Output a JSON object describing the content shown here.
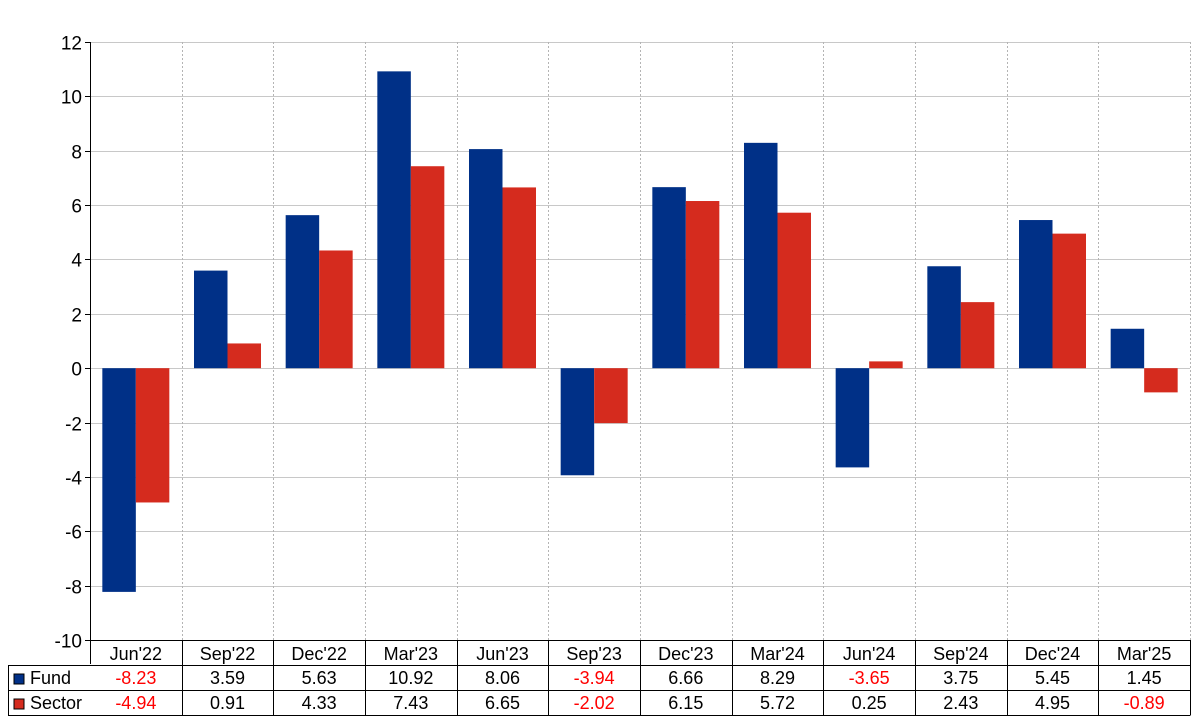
{
  "chart_data": {
    "type": "bar",
    "categories": [
      "Jun'22",
      "Sep'22",
      "Dec'22",
      "Mar'23",
      "Jun'23",
      "Sep'23",
      "Dec'23",
      "Mar'24",
      "Jun'24",
      "Sep'24",
      "Dec'24",
      "Mar'25"
    ],
    "series": [
      {
        "name": "Fund",
        "color": "#003087",
        "values": [
          -8.23,
          3.59,
          5.63,
          10.92,
          8.06,
          -3.94,
          6.66,
          8.29,
          -3.65,
          3.75,
          5.45,
          1.45
        ]
      },
      {
        "name": "Sector",
        "color": "#d52b1e",
        "values": [
          -4.94,
          0.91,
          4.33,
          7.43,
          6.65,
          -2.02,
          6.15,
          5.72,
          0.25,
          2.43,
          4.95,
          -0.89
        ]
      }
    ],
    "ylim": [
      -10,
      12
    ],
    "yticks": [
      "12",
      "10",
      "8",
      "6",
      "4",
      "2",
      "0",
      "-2",
      "-4",
      "-6",
      "-8",
      "-10"
    ],
    "grid": true,
    "legend": "table-bottom",
    "negative_value_color": "#ff0000",
    "positive_value_color": "#000000"
  }
}
